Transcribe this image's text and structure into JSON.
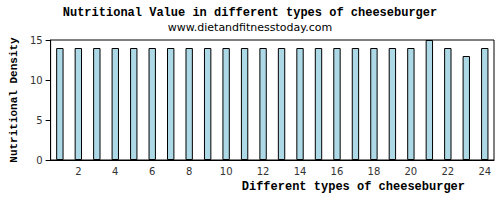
{
  "chart_data": {
    "type": "bar",
    "title": "Nutritional Value in different types of cheeseburger",
    "subtitle": "www.dietandfitnesstoday.com",
    "x_label": "Different types of cheeseburger",
    "y_label": "Nutritional Density",
    "categories": [
      null,
      "2",
      null,
      "4",
      null,
      "6",
      null,
      "8",
      null,
      "10",
      null,
      "12",
      null,
      "14",
      null,
      "16",
      null,
      "18",
      null,
      "20",
      null,
      "22",
      null,
      "24"
    ],
    "values": [
      14,
      14,
      14,
      14,
      14,
      14,
      14,
      14,
      14,
      14,
      14,
      14,
      14,
      14,
      14,
      14,
      14,
      14,
      14,
      14,
      15,
      14,
      13,
      14
    ],
    "color": "#add8e6",
    "ylim": [
      0,
      15
    ],
    "yticks": [
      0,
      5,
      10,
      15
    ],
    "grid": false
  }
}
